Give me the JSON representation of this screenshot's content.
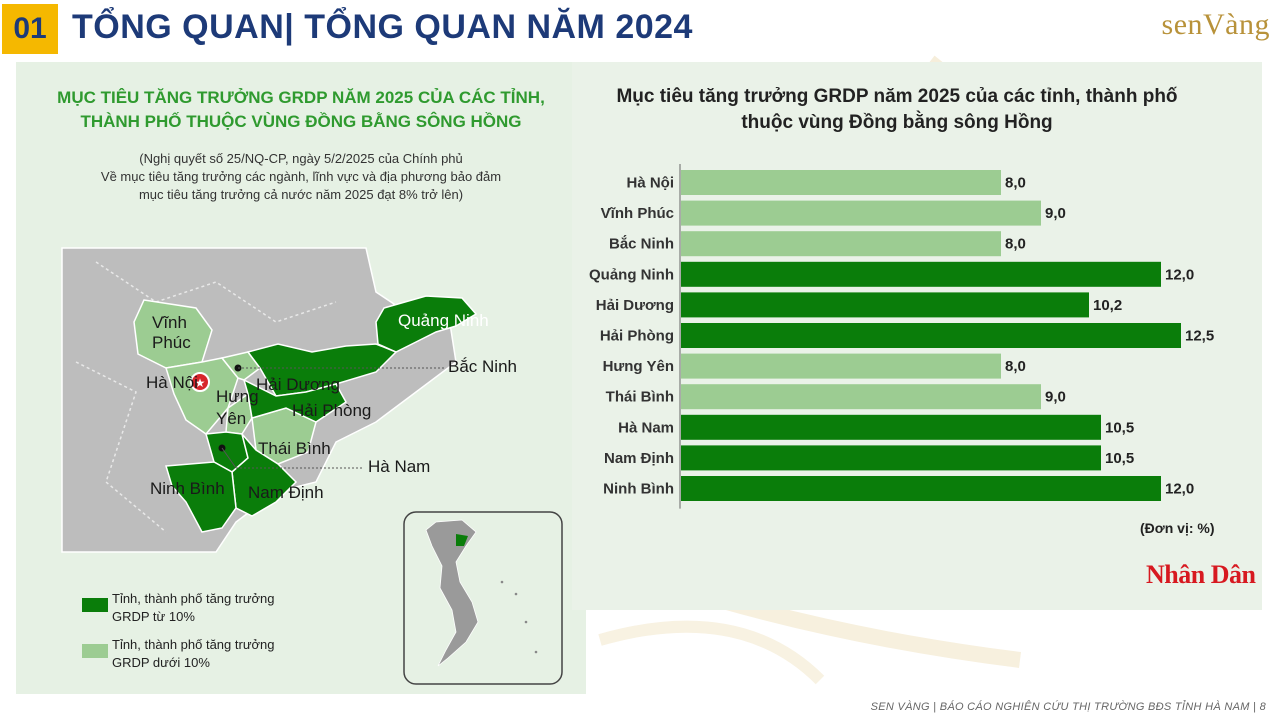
{
  "header": {
    "number": "01",
    "title": "TỔNG QUAN| TỔNG QUAN NĂM 2024",
    "logo": "senVàng"
  },
  "left_panel": {
    "title_line1": "MỤC TIÊU TĂNG TRƯỞNG GRDP NĂM 2025 CỦA CÁC TỈNH,",
    "title_line2": "THÀNH PHỐ THUỘC VÙNG ĐỒNG BẰNG SÔNG HỒNG",
    "subtitle_line1": "(Nghị quyết số 25/NQ-CP, ngày 5/2/2025 của Chính phủ",
    "subtitle_line2": "Về mục tiêu tăng trưởng các ngành, lĩnh vực và địa phương bảo đảm",
    "subtitle_line3": "mục tiêu tăng trưởng cả nước năm 2025 đạt 8% trở lên)",
    "map_labels": {
      "quang_ninh": "Quảng Ninh",
      "vinh_phuc_1": "Vĩnh",
      "vinh_phuc_2": "Phúc",
      "bac_ninh": "Bắc Ninh",
      "ha_noi": "Hà Nội",
      "hai_duong": "Hải Dương",
      "hung_yen_1": "Hưng",
      "hung_yen_2": "Yên",
      "hai_phong": "Hải Phòng",
      "thai_binh": "Thái Bình",
      "ha_nam": "Hà Nam",
      "ninh_binh": "Ninh Bình",
      "nam_dinh": "Nam Định"
    },
    "legend": [
      {
        "line1": "Tỉnh, thành phố tăng trưởng",
        "line2": "GRDP từ 10%",
        "color": "#0a7d0a"
      },
      {
        "line1": "Tỉnh, thành phố tăng trưởng",
        "line2": "GRDP dưới 10%",
        "color": "#9ccc92"
      }
    ]
  },
  "right_panel": {
    "title_line1": "Mục tiêu tăng trưởng GRDP năm 2025 của các tỉnh, thành phố",
    "title_line2": "thuộc vùng Đồng bằng sông Hồng",
    "unit": "(Đơn vị: %)",
    "source": "Nhân Dân"
  },
  "chart_data": {
    "type": "bar",
    "orientation": "horizontal",
    "categories": [
      "Hà Nội",
      "Vĩnh Phúc",
      "Bắc Ninh",
      "Quảng Ninh",
      "Hải Dương",
      "Hải Phòng",
      "Hưng Yên",
      "Thái Bình",
      "Hà Nam",
      "Nam Định",
      "Ninh Bình"
    ],
    "values": [
      8.0,
      9.0,
      8.0,
      12.0,
      10.2,
      12.5,
      8.0,
      9.0,
      10.5,
      10.5,
      12.0
    ],
    "value_labels": [
      "8,0",
      "9,0",
      "8,0",
      "12,0",
      "10,2",
      "12,5",
      "8,0",
      "9,0",
      "10,5",
      "10,5",
      "12,0"
    ],
    "title": "Mục tiêu tăng trưởng GRDP năm 2025 của các tỉnh, thành phố thuộc vùng Đồng bằng sông Hồng",
    "xlim": [
      0,
      12.5
    ],
    "grid": false,
    "colors": {
      "high": "#0a7d0a",
      "low": "#9ccc92"
    }
  },
  "footer": "SEN VÀNG | BÁO CÁO NGHIÊN CỨU THỊ TRƯỜNG BĐS TỈNH  HÀ NAM | 8"
}
